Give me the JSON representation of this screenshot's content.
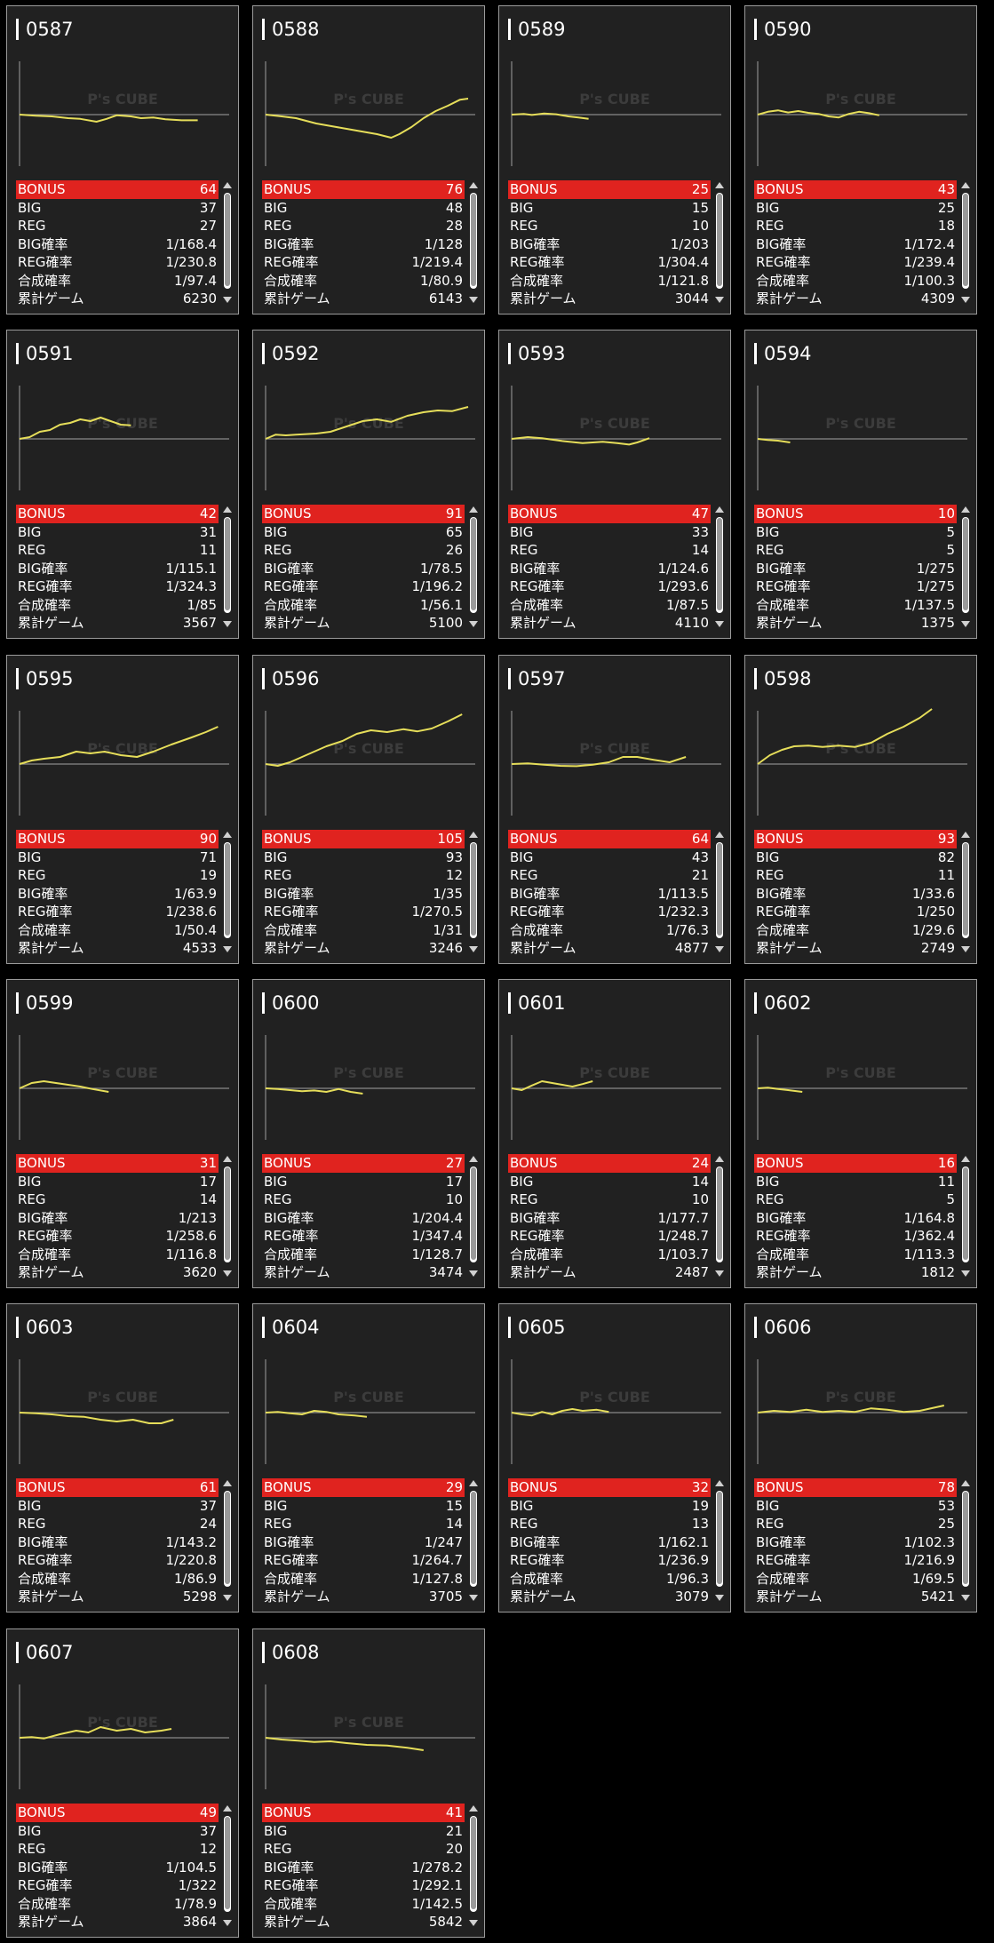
{
  "labels": [
    "BONUS",
    "BIG",
    "REG",
    "BIG確率",
    "REG確率",
    "合成確率",
    "累計ゲーム"
  ],
  "watermark": "P's CUBE",
  "colors": {
    "accent": "#e0231f",
    "line": "#e6de5a",
    "card_bg": "#212121",
    "axis": "#8a8a8a"
  },
  "machines": [
    {
      "id": "0587",
      "bonus": "64",
      "big": "37",
      "reg": "27",
      "big_rate": "1/168.4",
      "reg_rate": "1/230.8",
      "total_rate": "1/97.4",
      "games": "6230",
      "graph": [
        [
          0,
          0
        ],
        [
          0.08,
          -0.03
        ],
        [
          0.16,
          -0.05
        ],
        [
          0.24,
          -0.1
        ],
        [
          0.3,
          -0.12
        ],
        [
          0.38,
          -0.2
        ],
        [
          0.43,
          -0.12
        ],
        [
          0.48,
          -0.02
        ],
        [
          0.55,
          -0.05
        ],
        [
          0.6,
          -0.1
        ],
        [
          0.66,
          -0.08
        ],
        [
          0.72,
          -0.13
        ],
        [
          0.8,
          -0.16
        ],
        [
          0.88,
          -0.16
        ]
      ]
    },
    {
      "id": "0588",
      "bonus": "76",
      "big": "48",
      "reg": "28",
      "big_rate": "1/128",
      "reg_rate": "1/219.4",
      "total_rate": "1/80.9",
      "games": "6143",
      "graph": [
        [
          0,
          0
        ],
        [
          0.08,
          -0.05
        ],
        [
          0.15,
          -0.1
        ],
        [
          0.25,
          -0.25
        ],
        [
          0.35,
          -0.35
        ],
        [
          0.45,
          -0.45
        ],
        [
          0.55,
          -0.55
        ],
        [
          0.62,
          -0.65
        ],
        [
          0.66,
          -0.55
        ],
        [
          0.72,
          -0.35
        ],
        [
          0.78,
          -0.1
        ],
        [
          0.84,
          0.1
        ],
        [
          0.9,
          0.25
        ],
        [
          0.96,
          0.42
        ],
        [
          1,
          0.45
        ]
      ]
    },
    {
      "id": "0589",
      "bonus": "25",
      "big": "15",
      "reg": "10",
      "big_rate": "1/203",
      "reg_rate": "1/304.4",
      "total_rate": "1/121.8",
      "games": "3044",
      "graph": [
        [
          0,
          0
        ],
        [
          0.06,
          0.02
        ],
        [
          0.1,
          -0.01
        ],
        [
          0.16,
          0.03
        ],
        [
          0.22,
          0.01
        ],
        [
          0.28,
          -0.05
        ],
        [
          0.33,
          -0.08
        ],
        [
          0.38,
          -0.12
        ]
      ]
    },
    {
      "id": "0590",
      "bonus": "43",
      "big": "25",
      "reg": "18",
      "big_rate": "1/172.4",
      "reg_rate": "1/239.4",
      "total_rate": "1/100.3",
      "games": "4309",
      "graph": [
        [
          0,
          0
        ],
        [
          0.05,
          0.08
        ],
        [
          0.1,
          0.12
        ],
        [
          0.15,
          0.06
        ],
        [
          0.2,
          0.1
        ],
        [
          0.25,
          0.05
        ],
        [
          0.3,
          0.02
        ],
        [
          0.35,
          -0.05
        ],
        [
          0.4,
          -0.08
        ],
        [
          0.45,
          0.02
        ],
        [
          0.5,
          0.08
        ],
        [
          0.55,
          0.04
        ],
        [
          0.6,
          -0.02
        ]
      ]
    },
    {
      "id": "0591",
      "bonus": "42",
      "big": "31",
      "reg": "11",
      "big_rate": "1/115.1",
      "reg_rate": "1/324.3",
      "total_rate": "1/85",
      "games": "3567",
      "graph": [
        [
          0,
          0
        ],
        [
          0.05,
          0.05
        ],
        [
          0.1,
          0.2
        ],
        [
          0.15,
          0.25
        ],
        [
          0.2,
          0.4
        ],
        [
          0.25,
          0.45
        ],
        [
          0.3,
          0.55
        ],
        [
          0.35,
          0.5
        ],
        [
          0.4,
          0.6
        ],
        [
          0.45,
          0.5
        ],
        [
          0.5,
          0.4
        ],
        [
          0.55,
          0.38
        ]
      ]
    },
    {
      "id": "0592",
      "bonus": "91",
      "big": "65",
      "reg": "26",
      "big_rate": "1/78.5",
      "reg_rate": "1/196.2",
      "total_rate": "1/56.1",
      "games": "5100",
      "graph": [
        [
          0,
          0
        ],
        [
          0.05,
          0.12
        ],
        [
          0.1,
          0.1
        ],
        [
          0.15,
          0.12
        ],
        [
          0.25,
          0.15
        ],
        [
          0.32,
          0.2
        ],
        [
          0.4,
          0.35
        ],
        [
          0.48,
          0.5
        ],
        [
          0.55,
          0.55
        ],
        [
          0.62,
          0.48
        ],
        [
          0.7,
          0.65
        ],
        [
          0.78,
          0.75
        ],
        [
          0.85,
          0.8
        ],
        [
          0.92,
          0.78
        ],
        [
          1,
          0.9
        ]
      ]
    },
    {
      "id": "0593",
      "bonus": "47",
      "big": "33",
      "reg": "14",
      "big_rate": "1/124.6",
      "reg_rate": "1/293.6",
      "total_rate": "1/87.5",
      "games": "4110",
      "graph": [
        [
          0,
          0
        ],
        [
          0.08,
          0.05
        ],
        [
          0.15,
          0.02
        ],
        [
          0.25,
          -0.06
        ],
        [
          0.35,
          -0.12
        ],
        [
          0.45,
          -0.08
        ],
        [
          0.52,
          -0.12
        ],
        [
          0.58,
          -0.16
        ],
        [
          0.62,
          -0.1
        ],
        [
          0.68,
          0.02
        ]
      ]
    },
    {
      "id": "0594",
      "bonus": "10",
      "big": "5",
      "reg": "5",
      "big_rate": "1/275",
      "reg_rate": "1/275",
      "total_rate": "1/137.5",
      "games": "1375",
      "graph": [
        [
          0,
          0
        ],
        [
          0.05,
          -0.03
        ],
        [
          0.1,
          -0.05
        ],
        [
          0.16,
          -0.1
        ]
      ]
    },
    {
      "id": "0595",
      "bonus": "90",
      "big": "71",
      "reg": "19",
      "big_rate": "1/63.9",
      "reg_rate": "1/238.6",
      "total_rate": "1/50.4",
      "games": "4533",
      "graph": [
        [
          0,
          0
        ],
        [
          0.06,
          0.1
        ],
        [
          0.12,
          0.15
        ],
        [
          0.2,
          0.2
        ],
        [
          0.28,
          0.35
        ],
        [
          0.35,
          0.3
        ],
        [
          0.42,
          0.35
        ],
        [
          0.5,
          0.25
        ],
        [
          0.58,
          0.2
        ],
        [
          0.66,
          0.35
        ],
        [
          0.75,
          0.55
        ],
        [
          0.85,
          0.75
        ],
        [
          0.92,
          0.9
        ],
        [
          0.98,
          1.05
        ]
      ]
    },
    {
      "id": "0596",
      "bonus": "105",
      "big": "93",
      "reg": "12",
      "big_rate": "1/35",
      "reg_rate": "1/270.5",
      "total_rate": "1/31",
      "games": "3246",
      "graph": [
        [
          0,
          0
        ],
        [
          0.06,
          -0.05
        ],
        [
          0.12,
          0.05
        ],
        [
          0.2,
          0.25
        ],
        [
          0.3,
          0.5
        ],
        [
          0.38,
          0.65
        ],
        [
          0.45,
          0.85
        ],
        [
          0.52,
          0.95
        ],
        [
          0.6,
          0.9
        ],
        [
          0.68,
          0.98
        ],
        [
          0.75,
          0.92
        ],
        [
          0.82,
          1.0
        ],
        [
          0.9,
          1.2
        ],
        [
          0.97,
          1.4
        ]
      ]
    },
    {
      "id": "0597",
      "bonus": "64",
      "big": "43",
      "reg": "21",
      "big_rate": "1/113.5",
      "reg_rate": "1/232.3",
      "total_rate": "1/76.3",
      "games": "4877",
      "graph": [
        [
          0,
          0
        ],
        [
          0.08,
          0.02
        ],
        [
          0.16,
          -0.02
        ],
        [
          0.24,
          -0.05
        ],
        [
          0.32,
          -0.06
        ],
        [
          0.4,
          -0.02
        ],
        [
          0.48,
          0.05
        ],
        [
          0.55,
          0.2
        ],
        [
          0.62,
          0.2
        ],
        [
          0.7,
          0.12
        ],
        [
          0.78,
          0.05
        ],
        [
          0.86,
          0.2
        ]
      ]
    },
    {
      "id": "0598",
      "bonus": "93",
      "big": "82",
      "reg": "11",
      "big_rate": "1/33.6",
      "reg_rate": "1/250",
      "total_rate": "1/29.6",
      "games": "2749",
      "graph": [
        [
          0,
          0
        ],
        [
          0.06,
          0.25
        ],
        [
          0.12,
          0.4
        ],
        [
          0.18,
          0.5
        ],
        [
          0.25,
          0.52
        ],
        [
          0.32,
          0.48
        ],
        [
          0.4,
          0.52
        ],
        [
          0.48,
          0.48
        ],
        [
          0.56,
          0.6
        ],
        [
          0.64,
          0.85
        ],
        [
          0.72,
          1.05
        ],
        [
          0.8,
          1.3
        ],
        [
          0.86,
          1.55
        ]
      ]
    },
    {
      "id": "0599",
      "bonus": "31",
      "big": "17",
      "reg": "14",
      "big_rate": "1/213",
      "reg_rate": "1/258.6",
      "total_rate": "1/116.8",
      "games": "3620",
      "graph": [
        [
          0,
          0
        ],
        [
          0.06,
          0.15
        ],
        [
          0.12,
          0.2
        ],
        [
          0.18,
          0.15
        ],
        [
          0.24,
          0.1
        ],
        [
          0.3,
          0.05
        ],
        [
          0.36,
          -0.02
        ],
        [
          0.44,
          -0.1
        ]
      ]
    },
    {
      "id": "0600",
      "bonus": "27",
      "big": "17",
      "reg": "10",
      "big_rate": "1/204.4",
      "reg_rate": "1/347.4",
      "total_rate": "1/128.7",
      "games": "3474",
      "graph": [
        [
          0,
          0
        ],
        [
          0.06,
          -0.02
        ],
        [
          0.12,
          -0.05
        ],
        [
          0.18,
          -0.08
        ],
        [
          0.24,
          -0.06
        ],
        [
          0.3,
          -0.1
        ],
        [
          0.36,
          -0.02
        ],
        [
          0.42,
          -0.1
        ],
        [
          0.48,
          -0.15
        ]
      ]
    },
    {
      "id": "0601",
      "bonus": "24",
      "big": "14",
      "reg": "10",
      "big_rate": "1/177.7",
      "reg_rate": "1/248.7",
      "total_rate": "1/103.7",
      "games": "2487",
      "graph": [
        [
          0,
          0
        ],
        [
          0.05,
          -0.05
        ],
        [
          0.1,
          0.08
        ],
        [
          0.15,
          0.2
        ],
        [
          0.2,
          0.15
        ],
        [
          0.25,
          0.1
        ],
        [
          0.3,
          0.05
        ],
        [
          0.35,
          0.12
        ],
        [
          0.4,
          0.2
        ]
      ]
    },
    {
      "id": "0602",
      "bonus": "16",
      "big": "11",
      "reg": "5",
      "big_rate": "1/164.8",
      "reg_rate": "1/362.4",
      "total_rate": "1/113.3",
      "games": "1812",
      "graph": [
        [
          0,
          0
        ],
        [
          0.05,
          0.02
        ],
        [
          0.1,
          -0.02
        ],
        [
          0.15,
          -0.05
        ],
        [
          0.22,
          -0.1
        ]
      ]
    },
    {
      "id": "0603",
      "bonus": "61",
      "big": "37",
      "reg": "24",
      "big_rate": "1/143.2",
      "reg_rate": "1/220.8",
      "total_rate": "1/86.9",
      "games": "5298",
      "graph": [
        [
          0,
          0
        ],
        [
          0.08,
          -0.02
        ],
        [
          0.16,
          -0.05
        ],
        [
          0.24,
          -0.1
        ],
        [
          0.32,
          -0.12
        ],
        [
          0.4,
          -0.2
        ],
        [
          0.48,
          -0.25
        ],
        [
          0.56,
          -0.2
        ],
        [
          0.64,
          -0.3
        ],
        [
          0.7,
          -0.3
        ],
        [
          0.76,
          -0.2
        ]
      ]
    },
    {
      "id": "0604",
      "bonus": "29",
      "big": "15",
      "reg": "14",
      "big_rate": "1/247",
      "reg_rate": "1/264.7",
      "total_rate": "1/127.8",
      "games": "3705",
      "graph": [
        [
          0,
          0
        ],
        [
          0.06,
          0.02
        ],
        [
          0.12,
          -0.02
        ],
        [
          0.18,
          -0.05
        ],
        [
          0.24,
          0.05
        ],
        [
          0.3,
          0.02
        ],
        [
          0.36,
          -0.05
        ],
        [
          0.44,
          -0.08
        ],
        [
          0.5,
          -0.12
        ]
      ]
    },
    {
      "id": "0605",
      "bonus": "32",
      "big": "19",
      "reg": "13",
      "big_rate": "1/162.1",
      "reg_rate": "1/236.9",
      "total_rate": "1/96.3",
      "games": "3079",
      "graph": [
        [
          0,
          0
        ],
        [
          0.05,
          -0.05
        ],
        [
          0.1,
          -0.08
        ],
        [
          0.15,
          0.02
        ],
        [
          0.2,
          -0.05
        ],
        [
          0.25,
          0.05
        ],
        [
          0.3,
          0.1
        ],
        [
          0.35,
          0.05
        ],
        [
          0.42,
          0.08
        ],
        [
          0.48,
          0.02
        ]
      ]
    },
    {
      "id": "0606",
      "bonus": "78",
      "big": "53",
      "reg": "25",
      "big_rate": "1/102.3",
      "reg_rate": "1/216.9",
      "total_rate": "1/69.5",
      "games": "5421",
      "graph": [
        [
          0,
          0
        ],
        [
          0.08,
          0.05
        ],
        [
          0.16,
          0.02
        ],
        [
          0.24,
          0.08
        ],
        [
          0.32,
          0.02
        ],
        [
          0.4,
          0.05
        ],
        [
          0.48,
          0.02
        ],
        [
          0.56,
          0.12
        ],
        [
          0.64,
          0.08
        ],
        [
          0.72,
          0.02
        ],
        [
          0.8,
          0.05
        ],
        [
          0.88,
          0.15
        ],
        [
          0.92,
          0.2
        ]
      ]
    },
    {
      "id": "0607",
      "bonus": "49",
      "big": "37",
      "reg": "12",
      "big_rate": "1/104.5",
      "reg_rate": "1/322",
      "total_rate": "1/78.9",
      "games": "3864",
      "graph": [
        [
          0,
          0
        ],
        [
          0.06,
          0.02
        ],
        [
          0.12,
          -0.02
        ],
        [
          0.2,
          0.1
        ],
        [
          0.28,
          0.2
        ],
        [
          0.34,
          0.15
        ],
        [
          0.4,
          0.3
        ],
        [
          0.48,
          0.2
        ],
        [
          0.55,
          0.25
        ],
        [
          0.62,
          0.15
        ],
        [
          0.7,
          0.2
        ],
        [
          0.75,
          0.25
        ]
      ]
    },
    {
      "id": "0608",
      "bonus": "41",
      "big": "21",
      "reg": "20",
      "big_rate": "1/278.2",
      "reg_rate": "1/292.1",
      "total_rate": "1/142.5",
      "games": "5842",
      "graph": [
        [
          0,
          0
        ],
        [
          0.08,
          -0.05
        ],
        [
          0.16,
          -0.08
        ],
        [
          0.24,
          -0.12
        ],
        [
          0.32,
          -0.1
        ],
        [
          0.4,
          -0.15
        ],
        [
          0.5,
          -0.2
        ],
        [
          0.6,
          -0.22
        ],
        [
          0.7,
          -0.28
        ],
        [
          0.78,
          -0.35
        ]
      ]
    }
  ]
}
